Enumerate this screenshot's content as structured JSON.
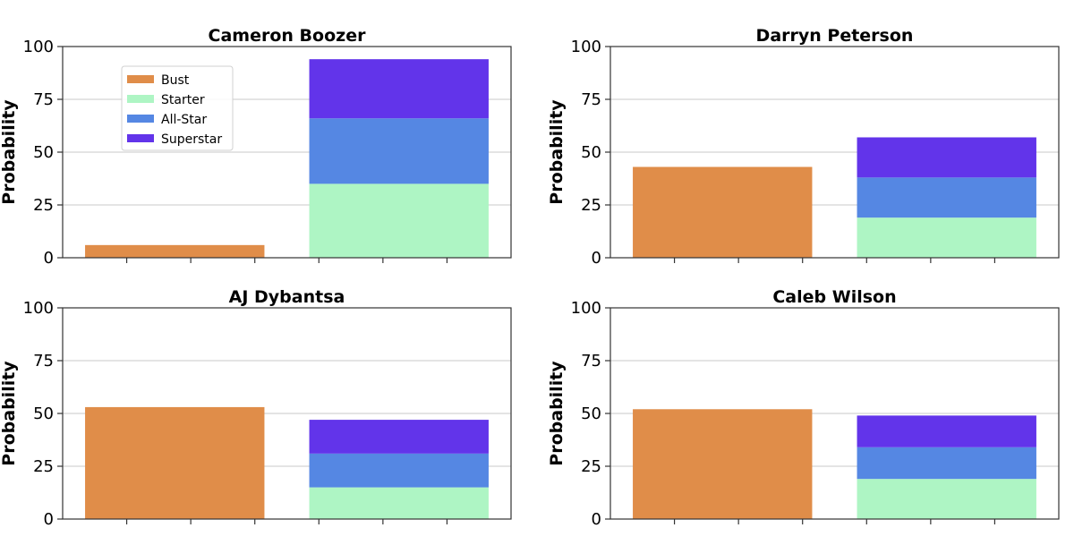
{
  "colors": {
    "bust": "#e08d49",
    "starter": "#aef5c4",
    "allstar": "#5587e3",
    "superstar": "#6234ea",
    "grid": "#c8c8c8",
    "axis": "#333333"
  },
  "chart_data": [
    {
      "type": "bar",
      "title": "Cameron Boozer",
      "ylabel": "Probability",
      "ylim": [
        0,
        100
      ],
      "yticks": [
        0,
        25,
        50,
        75,
        100
      ],
      "grid": "y",
      "legend": {
        "placement": "upper-left",
        "entries": [
          "Bust",
          "Starter",
          "All-Star",
          "Superstar"
        ]
      },
      "bars": [
        {
          "stack": [
            {
              "series": "Bust",
              "value": 6
            }
          ]
        },
        {
          "stack": [
            {
              "series": "Starter",
              "value": 35
            },
            {
              "series": "All-Star",
              "value": 31
            },
            {
              "series": "Superstar",
              "value": 28
            }
          ]
        }
      ]
    },
    {
      "type": "bar",
      "title": "Darryn Peterson",
      "ylabel": "Probability",
      "ylim": [
        0,
        100
      ],
      "yticks": [
        0,
        25,
        50,
        75,
        100
      ],
      "grid": "y",
      "bars": [
        {
          "stack": [
            {
              "series": "Bust",
              "value": 43
            }
          ]
        },
        {
          "stack": [
            {
              "series": "Starter",
              "value": 19
            },
            {
              "series": "All-Star",
              "value": 19
            },
            {
              "series": "Superstar",
              "value": 19
            }
          ]
        }
      ]
    },
    {
      "type": "bar",
      "title": "AJ Dybantsa",
      "ylabel": "Probability",
      "ylim": [
        0,
        100
      ],
      "yticks": [
        0,
        25,
        50,
        75,
        100
      ],
      "grid": "y",
      "bars": [
        {
          "stack": [
            {
              "series": "Bust",
              "value": 53
            }
          ]
        },
        {
          "stack": [
            {
              "series": "Starter",
              "value": 15
            },
            {
              "series": "All-Star",
              "value": 16
            },
            {
              "series": "Superstar",
              "value": 16
            }
          ]
        }
      ]
    },
    {
      "type": "bar",
      "title": "Caleb Wilson",
      "ylabel": "Probability",
      "ylim": [
        0,
        100
      ],
      "yticks": [
        0,
        25,
        50,
        75,
        100
      ],
      "grid": "y",
      "bars": [
        {
          "stack": [
            {
              "series": "Bust",
              "value": 52
            }
          ]
        },
        {
          "stack": [
            {
              "series": "Starter",
              "value": 19
            },
            {
              "series": "All-Star",
              "value": 15
            },
            {
              "series": "Superstar",
              "value": 15
            }
          ]
        }
      ]
    }
  ]
}
